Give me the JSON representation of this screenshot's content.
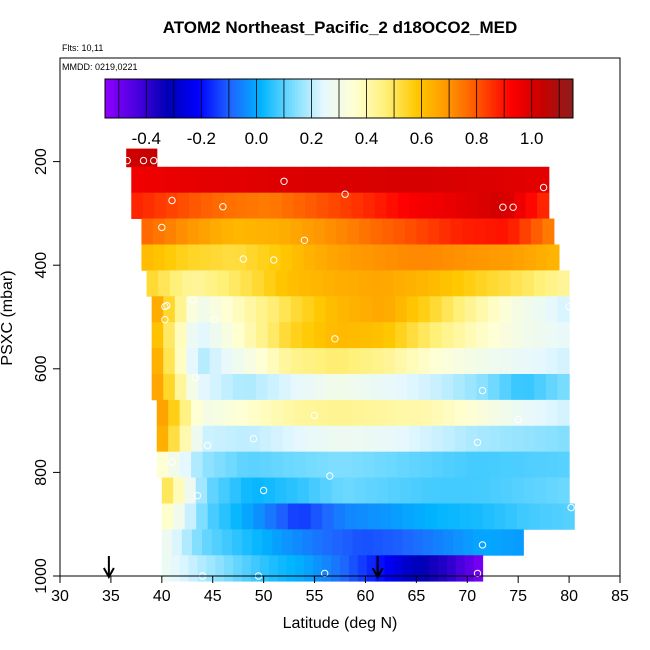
{
  "chart_data": {
    "type": "heatmap",
    "title": "ATOM2 Northeast_Pacific_2 d18OCO2_MED",
    "annotations": {
      "flights": "Flts: 10,11",
      "dates": "MMDD: 0219,0221"
    },
    "xlabel": "Latitude (deg N)",
    "ylabel": "PSXC (mbar)",
    "xlim": [
      30,
      85
    ],
    "ylim": [
      1000,
      0
    ],
    "x_ticks": [
      30,
      35,
      40,
      45,
      50,
      55,
      60,
      65,
      70,
      75,
      80,
      85
    ],
    "y_ticks": [
      200,
      400,
      600,
      800,
      1000
    ],
    "colorbar": {
      "range": [
        -0.55,
        1.15
      ],
      "ticks": [
        -0.4,
        -0.2,
        0.0,
        0.2,
        0.4,
        0.6,
        0.8,
        1.0
      ],
      "tick_labels": [
        "-0.4",
        "-0.2",
        "0.0",
        "0.2",
        "0.4",
        "0.6",
        "0.8",
        "1.0"
      ],
      "colors": [
        "#8f00ff",
        "#4b00e0",
        "#0000b4",
        "#0000ff",
        "#1e64ff",
        "#00b4ff",
        "#78dcff",
        "#e6f8ff",
        "#ffffd2",
        "#fff078",
        "#ffc800",
        "#ff9600",
        "#ff5000",
        "#ff0000",
        "#c80000",
        "#8c1e1e"
      ]
    },
    "arrows_latitude": [
      34.8,
      61.2
    ],
    "pressure_levels": [
      {
        "p_top": 175,
        "p_bot": 210,
        "lat_start": 36.5,
        "lat_end": 39.5,
        "values": [
          1.02,
          1.03,
          1.05
        ]
      },
      {
        "p_top": 210,
        "p_bot": 260,
        "lat_start": 37.0,
        "lat_end": 78.0,
        "values": [
          0.95,
          0.97,
          0.98,
          0.99,
          1.0,
          1.0,
          1.01,
          1.0,
          0.99,
          0.98
        ]
      },
      {
        "p_top": 260,
        "p_bot": 310,
        "lat_start": 37.0,
        "lat_end": 78.0,
        "values": [
          0.88,
          0.82,
          0.76,
          0.74,
          0.8,
          0.86,
          0.93,
          0.97,
          1.02,
          0.85
        ]
      },
      {
        "p_top": 310,
        "p_bot": 360,
        "lat_start": 38.0,
        "lat_end": 78.5,
        "values": [
          0.78,
          0.7,
          0.62,
          0.64,
          0.7,
          0.76,
          0.82,
          0.88,
          0.9,
          0.72
        ]
      },
      {
        "p_top": 360,
        "p_bot": 410,
        "lat_start": 38.0,
        "lat_end": 79.0,
        "values": [
          0.62,
          0.55,
          0.52,
          0.58,
          0.66,
          0.7,
          0.72,
          0.7,
          0.68,
          0.62
        ]
      },
      {
        "p_top": 410,
        "p_bot": 460,
        "lat_start": 38.5,
        "lat_end": 80.0,
        "values": [
          0.55,
          0.42,
          0.5,
          0.6,
          0.64,
          0.66,
          0.62,
          0.56,
          0.5,
          0.42
        ]
      },
      {
        "p_top": 460,
        "p_bot": 510,
        "lat_start": 39.0,
        "lat_end": 80.0,
        "values": [
          0.7,
          0.28,
          0.4,
          0.52,
          0.62,
          0.66,
          0.55,
          0.42,
          0.3,
          0.22
        ]
      },
      {
        "p_top": 510,
        "p_bot": 560,
        "lat_start": 39.0,
        "lat_end": 80.0,
        "values": [
          0.65,
          0.22,
          0.38,
          0.55,
          0.62,
          0.6,
          0.48,
          0.38,
          0.3,
          0.25
        ]
      },
      {
        "p_top": 560,
        "p_bot": 610,
        "lat_start": 39.0,
        "lat_end": 80.0,
        "values": [
          0.7,
          0.18,
          0.3,
          0.44,
          0.48,
          0.44,
          0.36,
          0.3,
          0.26,
          0.22
        ]
      },
      {
        "p_top": 610,
        "p_bot": 660,
        "lat_start": 39.0,
        "lat_end": 80.0,
        "values": [
          0.72,
          0.25,
          0.18,
          0.24,
          0.3,
          0.26,
          0.22,
          0.16,
          0.06,
          0.14
        ]
      },
      {
        "p_top": 660,
        "p_bot": 710,
        "lat_start": 39.5,
        "lat_end": 80.0,
        "values": [
          0.72,
          0.3,
          0.36,
          0.42,
          0.44,
          0.42,
          0.4,
          0.34,
          0.26,
          0.22
        ]
      },
      {
        "p_top": 710,
        "p_bot": 760,
        "lat_start": 39.5,
        "lat_end": 80.0,
        "values": [
          0.7,
          0.22,
          0.2,
          0.24,
          0.28,
          0.26,
          0.22,
          0.18,
          0.16,
          0.14
        ]
      },
      {
        "p_top": 760,
        "p_bot": 810,
        "lat_start": 39.5,
        "lat_end": 80.0,
        "values": [
          0.38,
          0.16,
          0.1,
          0.12,
          0.14,
          0.12,
          0.1,
          0.08,
          0.09,
          0.1
        ]
      },
      {
        "p_top": 810,
        "p_bot": 860,
        "lat_start": 40.0,
        "lat_end": 80.0,
        "values": [
          0.55,
          0.12,
          0.02,
          0.06,
          0.12,
          0.1,
          0.08,
          0.08,
          0.1,
          0.12
        ]
      },
      {
        "p_top": 860,
        "p_bot": 910,
        "lat_start": 40.0,
        "lat_end": 80.5,
        "values": [
          0.4,
          0.1,
          -0.02,
          -0.15,
          -0.05,
          -0.02,
          0.02,
          0.04,
          0.08,
          0.1
        ]
      },
      {
        "p_top": 910,
        "p_bot": 960,
        "lat_start": 40.0,
        "lat_end": 75.5,
        "values": [
          0.3,
          0.12,
          0.05,
          -0.02,
          -0.08,
          -0.12,
          -0.1,
          -0.05,
          0.0,
          -0.02
        ]
      },
      {
        "p_top": 960,
        "p_bot": 1010,
        "lat_start": 40.0,
        "lat_end": 71.5,
        "values": [
          0.28,
          0.2,
          0.12,
          0.05,
          0.0,
          -0.08,
          -0.18,
          -0.3,
          -0.38,
          -0.52
        ]
      }
    ],
    "sample_points": [
      {
        "lat": 36.6,
        "p": 198
      },
      {
        "lat": 38.2,
        "p": 198
      },
      {
        "lat": 39.2,
        "p": 198
      },
      {
        "lat": 52.0,
        "p": 238
      },
      {
        "lat": 58.0,
        "p": 263
      },
      {
        "lat": 77.5,
        "p": 250
      },
      {
        "lat": 41.0,
        "p": 275
      },
      {
        "lat": 46.0,
        "p": 287
      },
      {
        "lat": 73.5,
        "p": 288
      },
      {
        "lat": 74.5,
        "p": 288
      },
      {
        "lat": 40.0,
        "p": 327
      },
      {
        "lat": 54.0,
        "p": 352
      },
      {
        "lat": 48.0,
        "p": 388
      },
      {
        "lat": 51.0,
        "p": 390
      },
      {
        "lat": 40.3,
        "p": 480
      },
      {
        "lat": 40.5,
        "p": 478
      },
      {
        "lat": 43.0,
        "p": 467
      },
      {
        "lat": 80.0,
        "p": 480
      },
      {
        "lat": 40.3,
        "p": 505
      },
      {
        "lat": 45.2,
        "p": 505
      },
      {
        "lat": 57.0,
        "p": 542
      },
      {
        "lat": 43.3,
        "p": 617
      },
      {
        "lat": 71.5,
        "p": 642
      },
      {
        "lat": 55.0,
        "p": 690
      },
      {
        "lat": 75.0,
        "p": 698
      },
      {
        "lat": 49.0,
        "p": 735
      },
      {
        "lat": 44.5,
        "p": 748
      },
      {
        "lat": 71.0,
        "p": 742
      },
      {
        "lat": 41.0,
        "p": 780
      },
      {
        "lat": 56.5,
        "p": 807
      },
      {
        "lat": 50.0,
        "p": 835
      },
      {
        "lat": 43.5,
        "p": 845
      },
      {
        "lat": 80.2,
        "p": 868
      },
      {
        "lat": 71.5,
        "p": 940
      },
      {
        "lat": 44.0,
        "p": 1000
      },
      {
        "lat": 49.5,
        "p": 1000
      },
      {
        "lat": 56.0,
        "p": 995
      },
      {
        "lat": 71.0,
        "p": 995
      }
    ]
  }
}
